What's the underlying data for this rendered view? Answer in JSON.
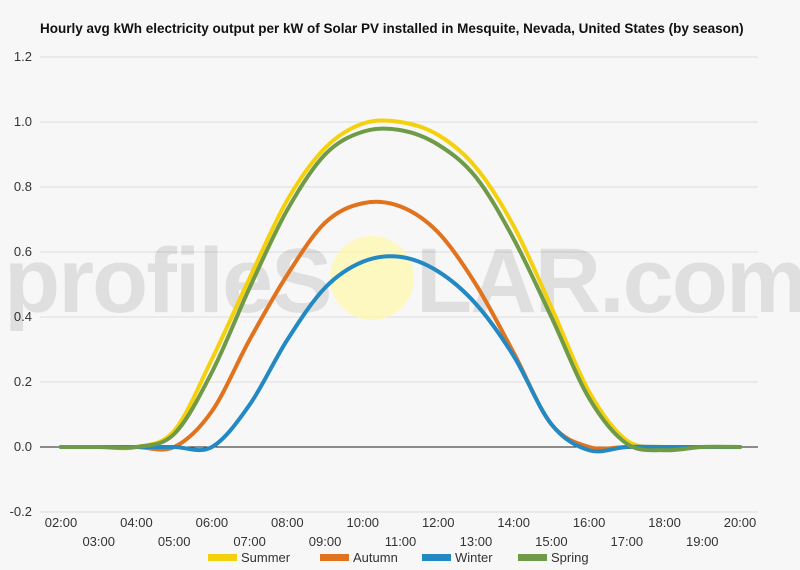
{
  "chart_data": {
    "type": "line",
    "title": "Hourly avg kWh electricity output per kW of Solar PV installed in Mesquite, Nevada, United States (by season)",
    "watermark": {
      "left": "profileS",
      "right": "LAR.com"
    },
    "xlabel": "",
    "ylabel": "",
    "x": [
      "02:00",
      "03:00",
      "04:00",
      "05:00",
      "06:00",
      "07:00",
      "08:00",
      "09:00",
      "10:00",
      "11:00",
      "12:00",
      "13:00",
      "14:00",
      "15:00",
      "16:00",
      "17:00",
      "18:00",
      "19:00",
      "20:00"
    ],
    "x_tick_labels_upper": [
      "02:00",
      "04:00",
      "06:00",
      "08:00",
      "10:00",
      "12:00",
      "14:00",
      "16:00",
      "18:00",
      "20:00"
    ],
    "x_tick_labels_lower": [
      "03:00",
      "05:00",
      "07:00",
      "09:00",
      "11:00",
      "13:00",
      "15:00",
      "17:00",
      "19:00"
    ],
    "ylim": [
      -0.2,
      1.2
    ],
    "y_ticks": [
      "-0.2",
      "0.0",
      "0.2",
      "0.4",
      "0.6",
      "0.8",
      "1.0",
      "1.2"
    ],
    "grid": true,
    "legend_position": "bottom",
    "series": [
      {
        "name": "Summer",
        "color": "#f5d10d",
        "values": [
          0,
          0,
          0,
          0.05,
          0.27,
          0.52,
          0.76,
          0.92,
          0.995,
          1.0,
          0.96,
          0.86,
          0.68,
          0.43,
          0.17,
          0.02,
          0,
          0,
          0
        ]
      },
      {
        "name": "Autumn",
        "color": "#e2731e",
        "values": [
          0,
          0,
          0,
          0,
          0.11,
          0.33,
          0.53,
          0.69,
          0.75,
          0.74,
          0.66,
          0.5,
          0.29,
          0.07,
          0,
          0,
          0,
          0,
          0
        ]
      },
      {
        "name": "Winter",
        "color": "#2389c2",
        "values": [
          0,
          0,
          0,
          0,
          0,
          0.13,
          0.33,
          0.49,
          0.57,
          0.585,
          0.54,
          0.44,
          0.28,
          0.07,
          -0.01,
          0,
          0,
          0,
          0
        ]
      },
      {
        "name": "Spring",
        "color": "#6f9a48",
        "values": [
          0,
          0,
          0,
          0.04,
          0.23,
          0.49,
          0.73,
          0.9,
          0.97,
          0.975,
          0.93,
          0.83,
          0.64,
          0.4,
          0.15,
          0.01,
          -0.01,
          0,
          0
        ]
      }
    ]
  }
}
